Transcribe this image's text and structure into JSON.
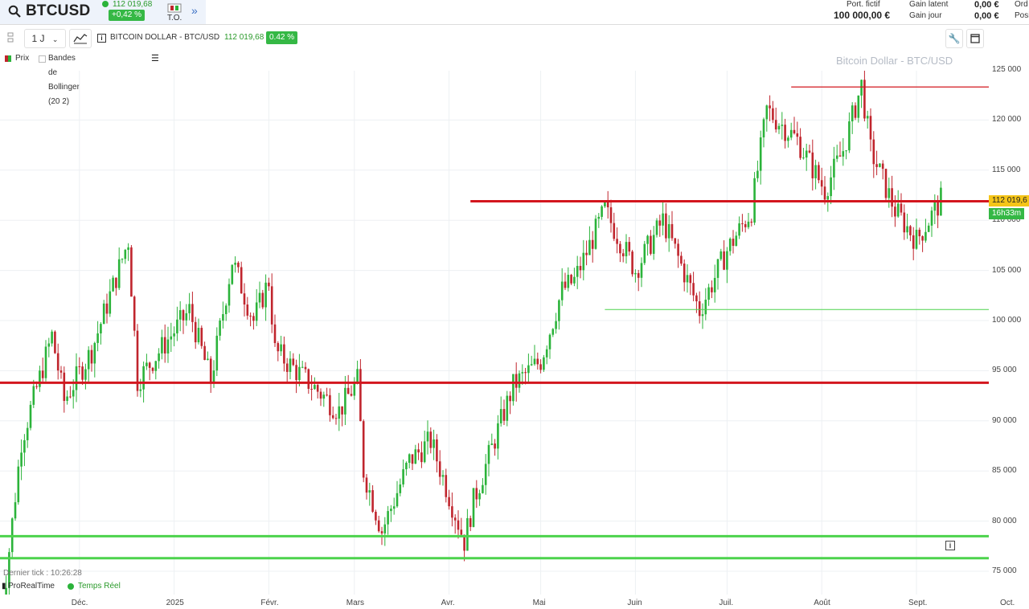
{
  "header": {
    "symbol": "BTCUSD",
    "last_price": "112 019,68",
    "change_pct": "+0,42 %",
    "to_label": "T.O.",
    "portfolio_label": "Port. fictif",
    "portfolio_value": "100 000,00 €",
    "gain_latent_label": "Gain latent",
    "gain_latent_value": "0,00 €",
    "gain_jour_label": "Gain jour",
    "gain_jour_value": "0,00 €",
    "orders_label": "Ord",
    "positions_label": "Posi"
  },
  "toolbar": {
    "interval": "1 J",
    "instrument_name": "BITCOIN DOLLAR - BTC/USD",
    "instrument_price": "112 019,68",
    "instrument_change": "0.42 %"
  },
  "legend": {
    "price_label": "Prix",
    "bollinger_label": "Bandes de Bollinger (20 2)"
  },
  "chart": {
    "watermark": "Bitcoin Dollar - BTC/USD",
    "last_tick": "Dernier tick : 10:26:28",
    "provider": "ProRealTime",
    "realtime": "Temps Réel",
    "price_tag": "112 019,6",
    "time_tag": "16h33m"
  },
  "colors": {
    "up": "#2bb33a",
    "down": "#c0252d",
    "resistance": "#d3161e",
    "support": "#4cd34c",
    "price_tag": "#f5c518"
  },
  "chart_data": {
    "type": "candlestick",
    "ylim": [
      74000,
      127000
    ],
    "y_ticks": [
      "125 000",
      "120 000",
      "115 000",
      "110 000",
      "105 000",
      "100 000",
      "95 000",
      "90 000",
      "85 000",
      "80 000",
      "75 000"
    ],
    "y_tick_values": [
      125000,
      120000,
      115000,
      110000,
      105000,
      100000,
      95000,
      90000,
      85000,
      80000,
      75000
    ],
    "x_ticks": [
      "Déc.",
      "2025",
      "Févr.",
      "Mars",
      "Avr.",
      "Mai",
      "Juin",
      "Juil.",
      "Août",
      "Sept.",
      "Oct."
    ],
    "x_tick_dates": [
      "2024-12-01",
      "2025-01-01",
      "2025-02-01",
      "2025-03-01",
      "2025-04-01",
      "2025-05-01",
      "2025-06-01",
      "2025-07-01",
      "2025-08-01",
      "2025-09-01",
      "2025-10-01"
    ],
    "hlines": [
      {
        "value": 93800,
        "color": "#d3161e",
        "from": "2024-10-30"
      },
      {
        "value": 111900,
        "color": "#d3161e",
        "from": "2025-04-08"
      },
      {
        "value": 123300,
        "color": "#d3161e",
        "from": "2025-07-22"
      },
      {
        "value": 101100,
        "color": "#4cd34c",
        "from": "2025-05-22"
      },
      {
        "value": 78500,
        "color": "#4cd34c",
        "from": "2024-10-30"
      },
      {
        "value": 76300,
        "color": "#4cd34c",
        "from": "2024-10-30"
      }
    ],
    "anchors": [
      [
        "2024-11-05",
        69000
      ],
      [
        "2024-11-12",
        88000
      ],
      [
        "2024-11-22",
        98500
      ],
      [
        "2024-11-26",
        92000
      ],
      [
        "2024-12-05",
        97000
      ],
      [
        "2024-12-17",
        108000
      ],
      [
        "2024-12-20",
        94000
      ],
      [
        "2025-01-06",
        101000
      ],
      [
        "2025-01-13",
        94000
      ],
      [
        "2025-01-20",
        106000
      ],
      [
        "2025-01-27",
        100000
      ],
      [
        "2025-02-01",
        104000
      ],
      [
        "2025-02-03",
        97000
      ],
      [
        "2025-02-24",
        91000
      ],
      [
        "2025-03-02",
        94000
      ],
      [
        "2025-03-04",
        85000
      ],
      [
        "2025-03-10",
        79000
      ],
      [
        "2025-03-19",
        86000
      ],
      [
        "2025-03-26",
        88000
      ],
      [
        "2025-04-06",
        78000
      ],
      [
        "2025-04-09",
        82000
      ],
      [
        "2025-04-22",
        93500
      ],
      [
        "2025-05-01",
        96000
      ],
      [
        "2025-05-08",
        103000
      ],
      [
        "2025-05-12",
        104000
      ],
      [
        "2025-05-22",
        111000
      ],
      [
        "2025-06-01",
        105000
      ],
      [
        "2025-06-10",
        110000
      ],
      [
        "2025-06-22",
        101000
      ],
      [
        "2025-07-01",
        107000
      ],
      [
        "2025-07-09",
        111000
      ],
      [
        "2025-07-14",
        121000
      ],
      [
        "2025-07-24",
        118000
      ],
      [
        "2025-08-02",
        113000
      ],
      [
        "2025-08-08",
        117000
      ],
      [
        "2025-08-14",
        123500
      ],
      [
        "2025-08-17",
        117000
      ],
      [
        "2025-08-25",
        111000
      ],
      [
        "2025-09-01",
        108000
      ],
      [
        "2025-09-09",
        112000
      ]
    ]
  }
}
